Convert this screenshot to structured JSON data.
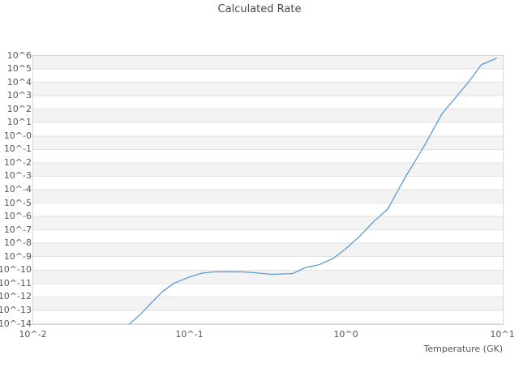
{
  "title": "Calculated Rate",
  "chart_data": {
    "type": "line",
    "title": "Calculated Rate",
    "xlabel": "Temperature (GK)",
    "ylabel": "",
    "x_scale": "log",
    "y_scale": "log",
    "xlim": [
      0.01,
      10
    ],
    "ylim": [
      1e-14,
      1000000.0
    ],
    "grid": "horizontal-bands",
    "legend": "none",
    "band_color": "#f3f3f3",
    "gridline_color": "#e2e2e2",
    "line_color": "#5b9bd5",
    "x_tick_labels": [
      "10^-2",
      "10^-1",
      "10^0",
      "10^1"
    ],
    "y_tick_labels": [
      "10^6",
      "10^5",
      "10^4",
      "10^3",
      "10^2",
      "10^1",
      "10^-0",
      "10^-1",
      "10^-2",
      "10^-3",
      "10^-4",
      "10^-5",
      "10^-6",
      "10^-7",
      "10^-8",
      "10^-9",
      "10^-10",
      "10^-11",
      "10^-12",
      "10^-13",
      "10^-14"
    ],
    "series": [
      {
        "name": "calculated-rate",
        "x": [
          0.041,
          0.045,
          0.049,
          0.058,
          0.067,
          0.079,
          0.1,
          0.12,
          0.143,
          0.18,
          0.215,
          0.26,
          0.33,
          0.4,
          0.455,
          0.55,
          0.67,
          0.83,
          1.0,
          1.22,
          1.5,
          1.84,
          2.36,
          3.15,
          4.1,
          5.0,
          6.1,
          7.3,
          9.1
        ],
        "y": [
          1e-14,
          2.6e-14,
          6.3e-14,
          5e-13,
          2.7e-12,
          1.1e-11,
          3.4e-11,
          6.4e-11,
          7.9e-11,
          8.1e-11,
          7.9e-11,
          6.9e-11,
          5.2e-11,
          5.6e-11,
          6e-11,
          1.7e-10,
          2.7e-10,
          8.4e-10,
          4.5e-09,
          3.7e-08,
          4.6e-07,
          3.8e-06,
          0.00075,
          0.2,
          51.0,
          800.0,
          13000.0,
          220000.0,
          660000.0
        ]
      }
    ]
  }
}
